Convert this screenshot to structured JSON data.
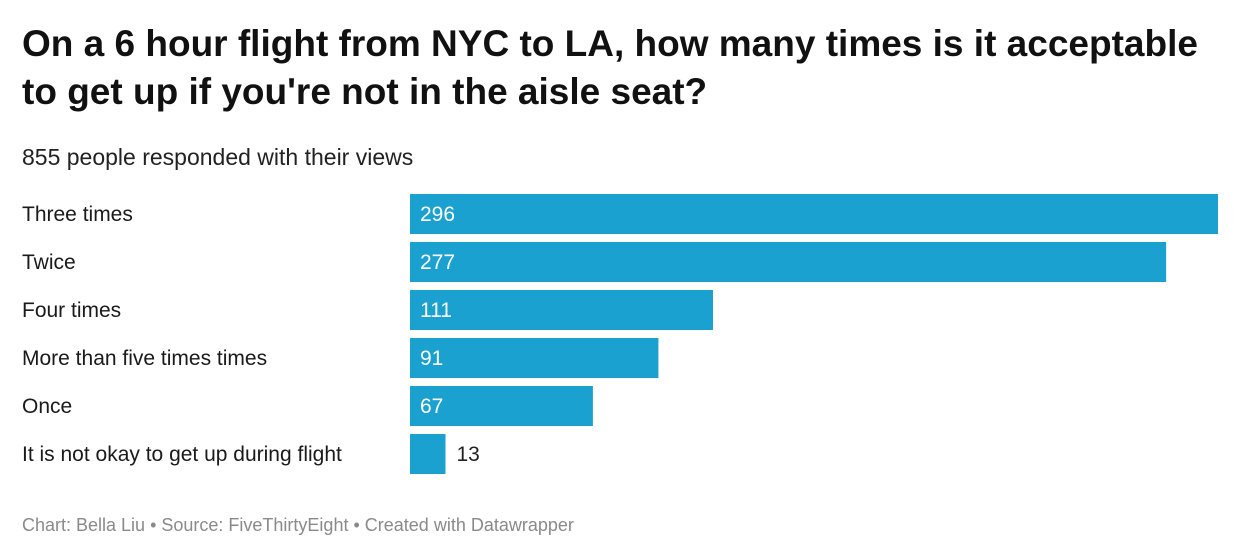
{
  "title": "On a 6 hour flight from NYC to LA, how many times is it acceptable to get up if you're not in the aisle seat?",
  "subtitle": "855 people responded with their views",
  "colors": {
    "bar": "#1ba1d0",
    "label_inside": "#ffffff",
    "label_outside": "#222222",
    "footer": "#8a8a8a"
  },
  "footer": {
    "chart": "Chart: Bella Liu",
    "source": "Source: FiveThirtyEight",
    "created": "Created with Datawrapper",
    "separator": "•"
  },
  "chart_data": {
    "type": "bar",
    "orientation": "horizontal",
    "categories": [
      "Three times",
      "Twice",
      "Four times",
      "More than five times times",
      "Once",
      "It is not okay to get up during flight"
    ],
    "values": [
      296,
      277,
      111,
      91,
      67,
      13
    ],
    "xlim": [
      0,
      296
    ],
    "grid": false,
    "legend": "none"
  }
}
